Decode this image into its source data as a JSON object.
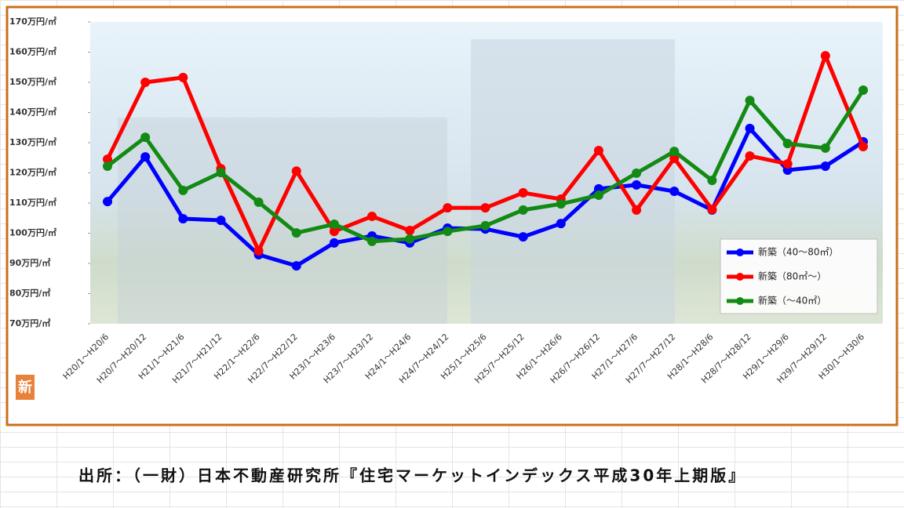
{
  "chart_data": {
    "type": "line",
    "categories": [
      "H20/1～H20/6",
      "H20/7～H20/12",
      "H21/1～H21/6",
      "H21/7～H21/12",
      "H22/1～H22/6",
      "H22/7～H22/12",
      "H23/1～H23/6",
      "H23/7～H23/12",
      "H24/1～H24/6",
      "H24/7～H24/12",
      "H25/1～H25/6",
      "H25/7～H25/12",
      "H26/1～H26/6",
      "H26/7～H26/12",
      "H27/1～H27/6",
      "H27/7～H27/12",
      "H28/1～H28/6",
      "H28/7～H28/12",
      "H29/1～H29/6",
      "H29/7～H29/12",
      "H30/1～H30/6"
    ],
    "series": [
      {
        "name": "新築（40～80㎡）",
        "color": "#0000ff",
        "values": [
          110.5,
          125.3,
          104.8,
          104.3,
          92.9,
          89.2,
          96.8,
          99.1,
          96.8,
          101.7,
          101.4,
          98.8,
          103.2,
          114.7,
          116,
          113.9,
          107.7,
          134.7,
          120.9,
          122.2,
          130.3
        ]
      },
      {
        "name": "新築（80㎡～）",
        "color": "#ff0000",
        "values": [
          124.5,
          150,
          151.6,
          121.4,
          94.2,
          120.6,
          100.6,
          105.6,
          100.9,
          108.4,
          108.4,
          113.4,
          111.3,
          127.4,
          107.7,
          124.8,
          107.9,
          125.6,
          123,
          158.8,
          128.7
        ]
      },
      {
        "name": "新築（～40㎡）",
        "color": "#138a13",
        "values": [
          122.2,
          131.8,
          114.2,
          120.1,
          110.3,
          100.1,
          103,
          97.3,
          98.1,
          100.6,
          102.5,
          107.7,
          109.7,
          112.6,
          119.9,
          127.1,
          117.5,
          144,
          129.7,
          128.2,
          147.4
        ]
      }
    ],
    "ylim": [
      70,
      170
    ],
    "yticks": [
      {
        "value": 70,
        "label": "70万円/㎡"
      },
      {
        "value": 80,
        "label": "80万円/㎡"
      },
      {
        "value": 90,
        "label": "90万円/㎡"
      },
      {
        "value": 100,
        "label": "100万円/㎡"
      },
      {
        "value": 110,
        "label": "110万円/㎡"
      },
      {
        "value": 120,
        "label": "120万円/㎡"
      },
      {
        "value": 130,
        "label": "130万円/㎡"
      },
      {
        "value": 140,
        "label": "140万円/㎡"
      },
      {
        "value": 150,
        "label": "150万円/㎡"
      },
      {
        "value": 160,
        "label": "160万円/㎡"
      },
      {
        "value": 170,
        "label": "170万円/㎡"
      }
    ],
    "legend": "lower-right"
  },
  "badge": "新",
  "source": "出所：（一財）日本不動産研究所『住宅マーケットインデックス平成30年上期版』"
}
